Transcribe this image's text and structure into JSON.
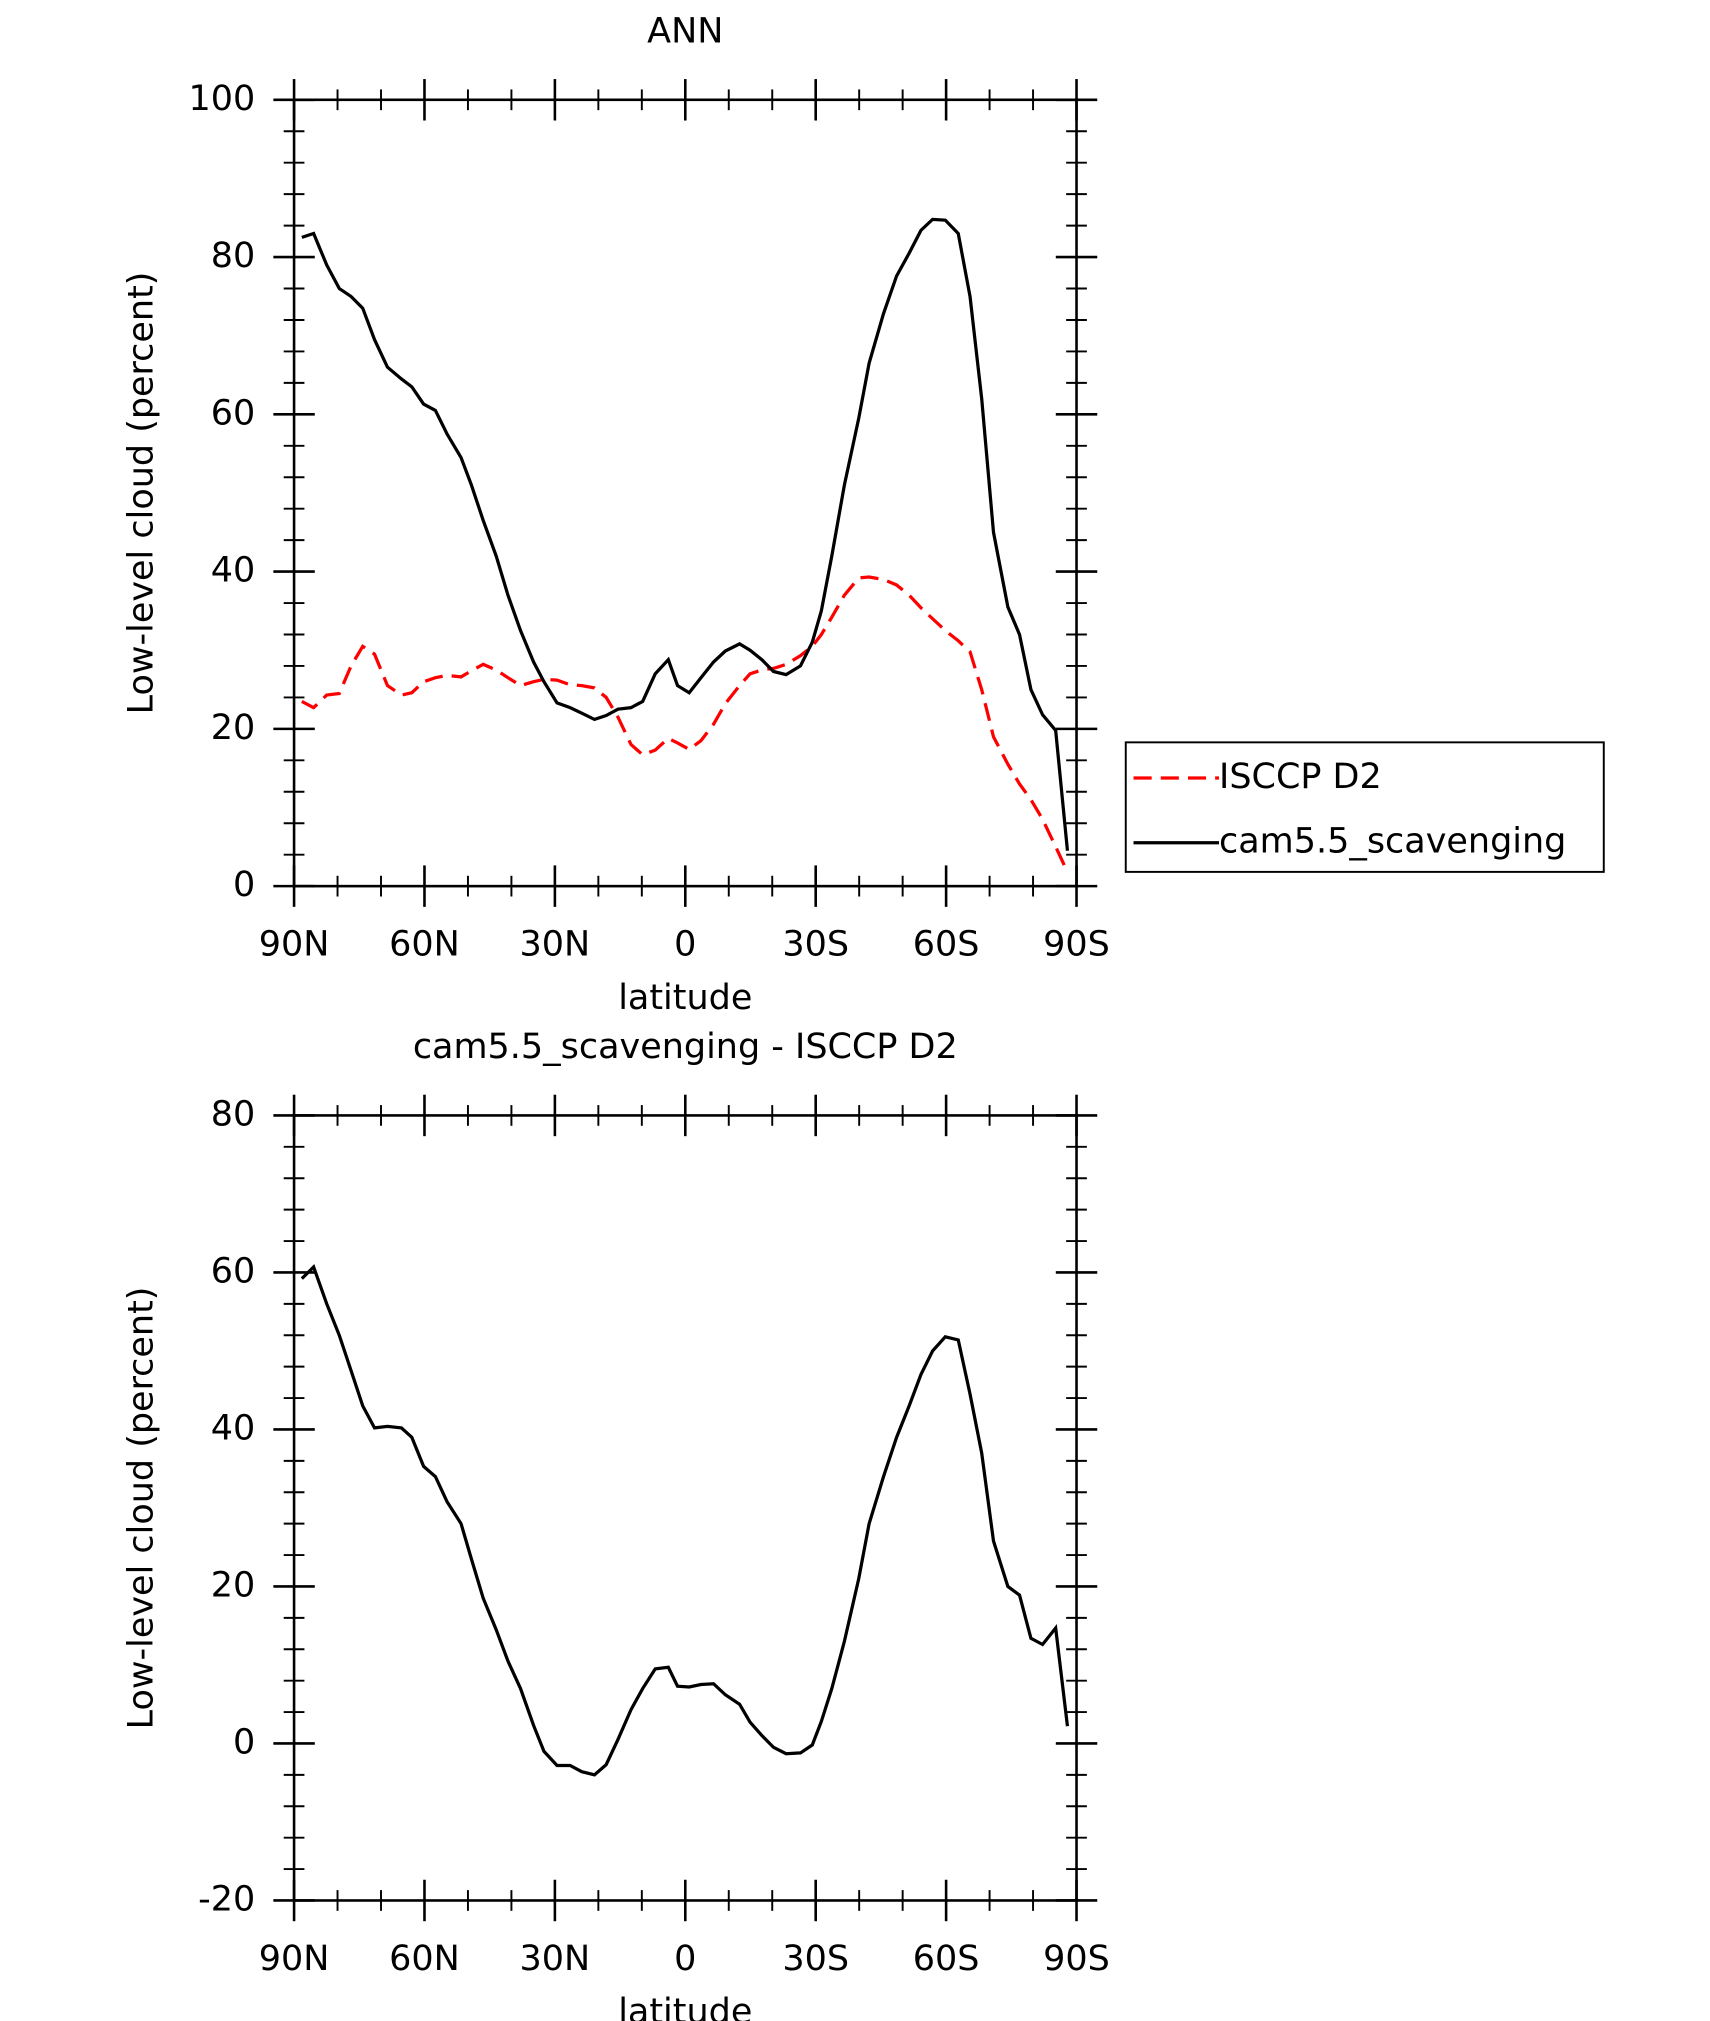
{
  "chart_data": [
    {
      "type": "line",
      "title": "ANN",
      "x_label": "latitude",
      "y_label": "Low-level cloud (percent)",
      "x": [
        88.2,
        85.5,
        82.5,
        79.6,
        76.9,
        74.2,
        71.5,
        68.5,
        65.3,
        62.9,
        60.2,
        57.5,
        54.8,
        51.6,
        49.2,
        46.5,
        43.5,
        40.8,
        37.9,
        34.9,
        32.5,
        29.5,
        26.5,
        23.8,
        20.9,
        18.2,
        15.5,
        12.5,
        9.8,
        6.9,
        3.9,
        1.8,
        -0.9,
        -3.6,
        -6.5,
        -9.2,
        -12.5,
        -14.9,
        -17.6,
        -20.3,
        -23.2,
        -26.5,
        -29.2,
        -31.3,
        -33.7,
        -36.6,
        -39.9,
        -42.3,
        -45.6,
        -48.6,
        -51.5,
        -54.2,
        -56.9,
        -59.8,
        -62.8,
        -65.5,
        -68.2,
        -70.9,
        -74.2,
        -76.9,
        -79.5,
        -82.2,
        -85.2,
        -87.9
      ],
      "series": [
        {
          "name": "ISCCP D2",
          "color": "#ff0000",
          "dashed": true,
          "values": [
            23.5,
            22.7,
            24.3,
            24.5,
            28,
            30.5,
            29.5,
            25.5,
            24.3,
            24.6,
            26,
            26.5,
            26.8,
            26.6,
            27.4,
            28.2,
            27.5,
            26.5,
            25.5,
            26,
            26.3,
            26.2,
            25.6,
            25.5,
            25.2,
            24,
            21.5,
            18,
            16.7,
            17.3,
            18.8,
            18.2,
            17.4,
            18.5,
            20.6,
            23.2,
            25.5,
            27,
            27.5,
            27.7,
            28.2,
            29.3,
            30.5,
            32,
            34.2,
            37,
            39.2,
            39.3,
            39,
            38.3,
            37,
            35.4,
            34,
            32.5,
            31.2,
            29.8,
            25,
            19,
            15.5,
            13,
            11,
            8.5,
            5,
            1.8
          ]
        },
        {
          "name": "cam5.5_scavenging",
          "color": "#000000",
          "dashed": false,
          "values": [
            82.5,
            83,
            79,
            76,
            75,
            73.5,
            69.5,
            66,
            64.5,
            63.5,
            61.3,
            60.5,
            57.5,
            54.5,
            51,
            46.5,
            42,
            37,
            32.5,
            28.5,
            26,
            23.3,
            22.7,
            22,
            21.2,
            21.7,
            22.5,
            22.7,
            23.5,
            27,
            28.8,
            25.5,
            24.6,
            26.5,
            28.5,
            29.9,
            30.8,
            30,
            28.8,
            27.3,
            26.9,
            28,
            31,
            35,
            42,
            51,
            59.5,
            66.5,
            72.8,
            77.6,
            80.5,
            83.4,
            84.8,
            84.7,
            83,
            75,
            62,
            45,
            35.5,
            32,
            25,
            21.8,
            19.8,
            4.5
          ]
        }
      ],
      "xlim": [
        90,
        -90
      ],
      "xticks": [
        {
          "value": 90,
          "label": "90N"
        },
        {
          "value": 60,
          "label": "60N"
        },
        {
          "value": 30,
          "label": "30N"
        },
        0,
        {
          "value": -30,
          "label": "30S"
        },
        {
          "value": -60,
          "label": "60S"
        },
        {
          "value": -90,
          "label": "90S"
        }
      ],
      "ylim": [
        0,
        100
      ],
      "yticks": [
        0,
        20,
        40,
        60,
        80,
        100
      ],
      "legend": "right"
    },
    {
      "type": "line",
      "title": "cam5.5_scavenging - ISCCP D2",
      "x_label": "latitude",
      "y_label": "Low-level cloud (percent)",
      "x": [
        88.2,
        85.5,
        82.5,
        79.6,
        76.9,
        74.2,
        71.5,
        68.5,
        65.3,
        62.9,
        60.2,
        57.5,
        54.8,
        51.6,
        49.2,
        46.5,
        43.5,
        40.8,
        37.9,
        34.9,
        32.5,
        29.5,
        26.5,
        23.8,
        20.9,
        18.2,
        15.5,
        12.5,
        9.8,
        6.9,
        3.9,
        1.8,
        -0.9,
        -3.6,
        -6.5,
        -9.2,
        -12.5,
        -14.9,
        -17.6,
        -20.3,
        -23.2,
        -26.5,
        -29.2,
        -31.3,
        -33.7,
        -36.6,
        -39.9,
        -42.3,
        -45.6,
        -48.6,
        -51.5,
        -54.2,
        -56.9,
        -59.8,
        -62.8,
        -65.5,
        -68.2,
        -70.9,
        -74.2,
        -76.9,
        -79.5,
        -82.2,
        -85.2,
        -87.9
      ],
      "values": [
        59.2,
        60.7,
        56,
        52,
        47.5,
        43,
        40.2,
        40.4,
        40.2,
        39,
        35.3,
        34,
        30.8,
        28,
        23.5,
        18.5,
        14.5,
        10.5,
        7,
        2.3,
        -1,
        -2.8,
        -2.8,
        -3.6,
        -4,
        -2.7,
        0.5,
        4.3,
        7,
        9.5,
        9.7,
        7.3,
        7.2,
        7.5,
        7.6,
        6.2,
        5,
        2.7,
        1,
        -0.5,
        -1.3,
        -1.2,
        -0.2,
        2.8,
        7,
        13,
        21,
        28,
        34,
        39,
        43,
        47,
        50,
        51.8,
        51.4,
        44.5,
        37,
        25.8,
        20,
        18.9,
        13.4,
        12.6,
        14.7,
        2.2
      ],
      "color": "#000000",
      "xlim": [
        90,
        -90
      ],
      "xticks": [
        {
          "value": 90,
          "label": "90N"
        },
        {
          "value": 60,
          "label": "60N"
        },
        {
          "value": 30,
          "label": "30N"
        },
        0,
        {
          "value": -30,
          "label": "30S"
        },
        {
          "value": -60,
          "label": "60S"
        },
        {
          "value": -90,
          "label": "90S"
        }
      ],
      "ylim": [
        -20,
        80
      ],
      "yticks": [
        -20,
        0,
        20,
        40,
        60,
        80
      ]
    }
  ]
}
